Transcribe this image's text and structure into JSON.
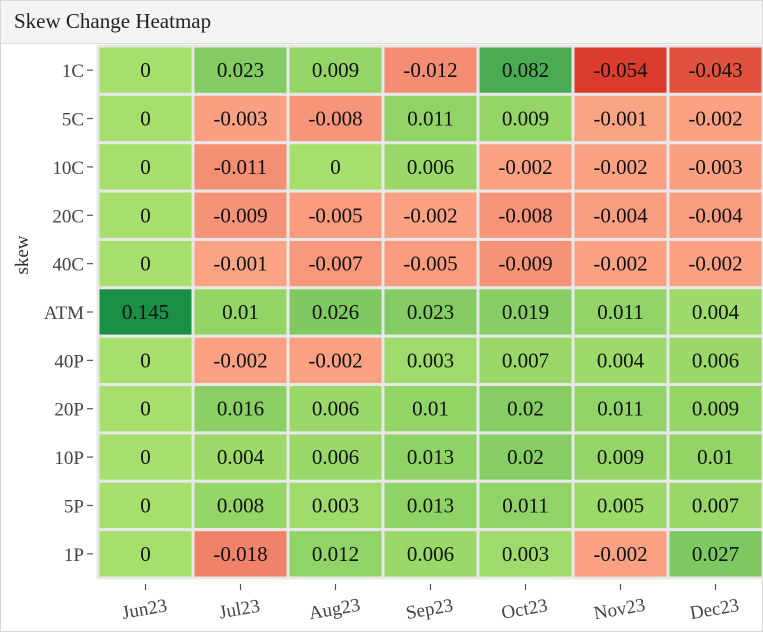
{
  "header": {
    "title": "Skew Change Heatmap"
  },
  "chart_data": {
    "type": "heatmap",
    "title": "Skew Change Heatmap",
    "xlabel": "",
    "ylabel": "skew",
    "x": [
      "Jun23",
      "Jul23",
      "Aug23",
      "Sep23",
      "Oct23",
      "Nov23",
      "Dec23"
    ],
    "y": [
      "1C",
      "5C",
      "10C",
      "20C",
      "40C",
      "ATM",
      "40P",
      "20P",
      "10P",
      "5P",
      "1P"
    ],
    "values": [
      [
        0,
        0.023,
        0.009,
        -0.012,
        0.082,
        -0.054,
        -0.043
      ],
      [
        0,
        -0.003,
        -0.008,
        0.011,
        0.009,
        -0.001,
        -0.002
      ],
      [
        0,
        -0.011,
        0,
        0.006,
        -0.002,
        -0.002,
        -0.003
      ],
      [
        0,
        -0.009,
        -0.005,
        -0.002,
        -0.008,
        -0.004,
        -0.004
      ],
      [
        0,
        -0.001,
        -0.007,
        -0.005,
        -0.009,
        -0.002,
        -0.002
      ],
      [
        0.145,
        0.01,
        0.026,
        0.023,
        0.019,
        0.011,
        0.004
      ],
      [
        0,
        -0.002,
        -0.002,
        0.003,
        0.007,
        0.004,
        0.006
      ],
      [
        0,
        0.016,
        0.006,
        0.01,
        0.02,
        0.011,
        0.009
      ],
      [
        0,
        0.004,
        0.006,
        0.013,
        0.02,
        0.009,
        0.01
      ],
      [
        0,
        0.008,
        0.003,
        0.013,
        0.011,
        0.005,
        0.007
      ],
      [
        0,
        -0.018,
        0.012,
        0.006,
        0.003,
        -0.002,
        0.027
      ]
    ],
    "colors": {
      "negative_light": "#fba587",
      "negative_dark": "#d9392a",
      "zero": "#a6df6c",
      "positive_dark": "#1a8f46",
      "grid": "#e8e8e8"
    }
  }
}
